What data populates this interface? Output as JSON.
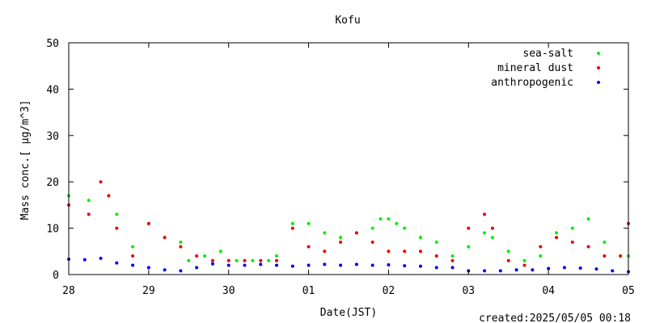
{
  "chart_data": {
    "type": "scatter",
    "title": "Kofu",
    "xlabel": "Date(JST)",
    "ylabel": "Mass conc.[ μg/m^3]",
    "created": "created:2025/05/05 00:18",
    "x_range_days": [
      0,
      7
    ],
    "x_ticks": [
      {
        "day": 0,
        "label": "28"
      },
      {
        "day": 1,
        "label": "29"
      },
      {
        "day": 2,
        "label": "30"
      },
      {
        "day": 3,
        "label": "01"
      },
      {
        "day": 4,
        "label": "02"
      },
      {
        "day": 5,
        "label": "03"
      },
      {
        "day": 6,
        "label": "04"
      },
      {
        "day": 7,
        "label": "05"
      }
    ],
    "ylim": [
      0,
      50
    ],
    "y_ticks": [
      0,
      10,
      20,
      30,
      40,
      50
    ],
    "legend_position": "top-right",
    "series": [
      {
        "name": "sea-salt",
        "color": "#00ee00",
        "day": [
          0.0,
          0.25,
          0.5,
          0.6,
          0.8,
          1.0,
          1.2,
          1.4,
          1.5,
          1.7,
          1.9,
          2.1,
          2.3,
          2.5,
          2.6,
          2.8,
          3.0,
          3.2,
          3.4,
          3.6,
          3.8,
          3.9,
          4.0,
          4.1,
          4.2,
          4.4,
          4.6,
          4.8,
          5.0,
          5.2,
          5.3,
          5.5,
          5.7,
          5.9,
          6.1,
          6.3,
          6.5,
          6.7,
          6.9,
          7.0
        ],
        "value": [
          17,
          16,
          17,
          13,
          6,
          11,
          8,
          7,
          3,
          4,
          5,
          3,
          3,
          3,
          4,
          11,
          11,
          9,
          8,
          9,
          10,
          12,
          12,
          11,
          10,
          8,
          7,
          4,
          6,
          9,
          8,
          5,
          3,
          4,
          9,
          10,
          12,
          7,
          4,
          4
        ]
      },
      {
        "name": "mineral dust",
        "color": "#ee0000",
        "day": [
          0.0,
          0.25,
          0.4,
          0.5,
          0.6,
          0.8,
          1.0,
          1.2,
          1.4,
          1.6,
          1.8,
          2.0,
          2.2,
          2.4,
          2.6,
          2.8,
          3.0,
          3.2,
          3.4,
          3.6,
          3.8,
          4.0,
          4.2,
          4.4,
          4.6,
          4.8,
          5.0,
          5.2,
          5.3,
          5.5,
          5.7,
          5.9,
          6.1,
          6.3,
          6.5,
          6.7,
          6.9,
          7.0
        ],
        "value": [
          15,
          13,
          20,
          17,
          10,
          4,
          11,
          8,
          6,
          4,
          3,
          3,
          3,
          3,
          3,
          10,
          6,
          5,
          7,
          9,
          7,
          5,
          5,
          5,
          4,
          3,
          10,
          13,
          10,
          3,
          2,
          6,
          8,
          7,
          6,
          4,
          4,
          11
        ]
      },
      {
        "name": "anthropogenic",
        "color": "#0000ee",
        "day": [
          0.0,
          0.2,
          0.4,
          0.6,
          0.8,
          1.0,
          1.2,
          1.4,
          1.6,
          1.8,
          2.0,
          2.2,
          2.4,
          2.6,
          2.8,
          3.0,
          3.2,
          3.4,
          3.6,
          3.8,
          4.0,
          4.2,
          4.4,
          4.6,
          4.8,
          5.0,
          5.2,
          5.4,
          5.6,
          5.8,
          6.0,
          6.2,
          6.4,
          6.6,
          6.8,
          7.0
        ],
        "value": [
          3.3,
          3.2,
          3.5,
          2.5,
          2.0,
          1.5,
          1.0,
          0.8,
          1.5,
          2.3,
          2.0,
          2.0,
          2.2,
          2.0,
          1.8,
          2.0,
          2.2,
          2.0,
          2.2,
          2.0,
          2.1,
          1.9,
          1.8,
          1.5,
          1.5,
          0.8,
          0.8,
          0.8,
          1.0,
          1.0,
          1.3,
          1.5,
          1.4,
          1.2,
          0.8,
          0.6
        ]
      }
    ]
  }
}
